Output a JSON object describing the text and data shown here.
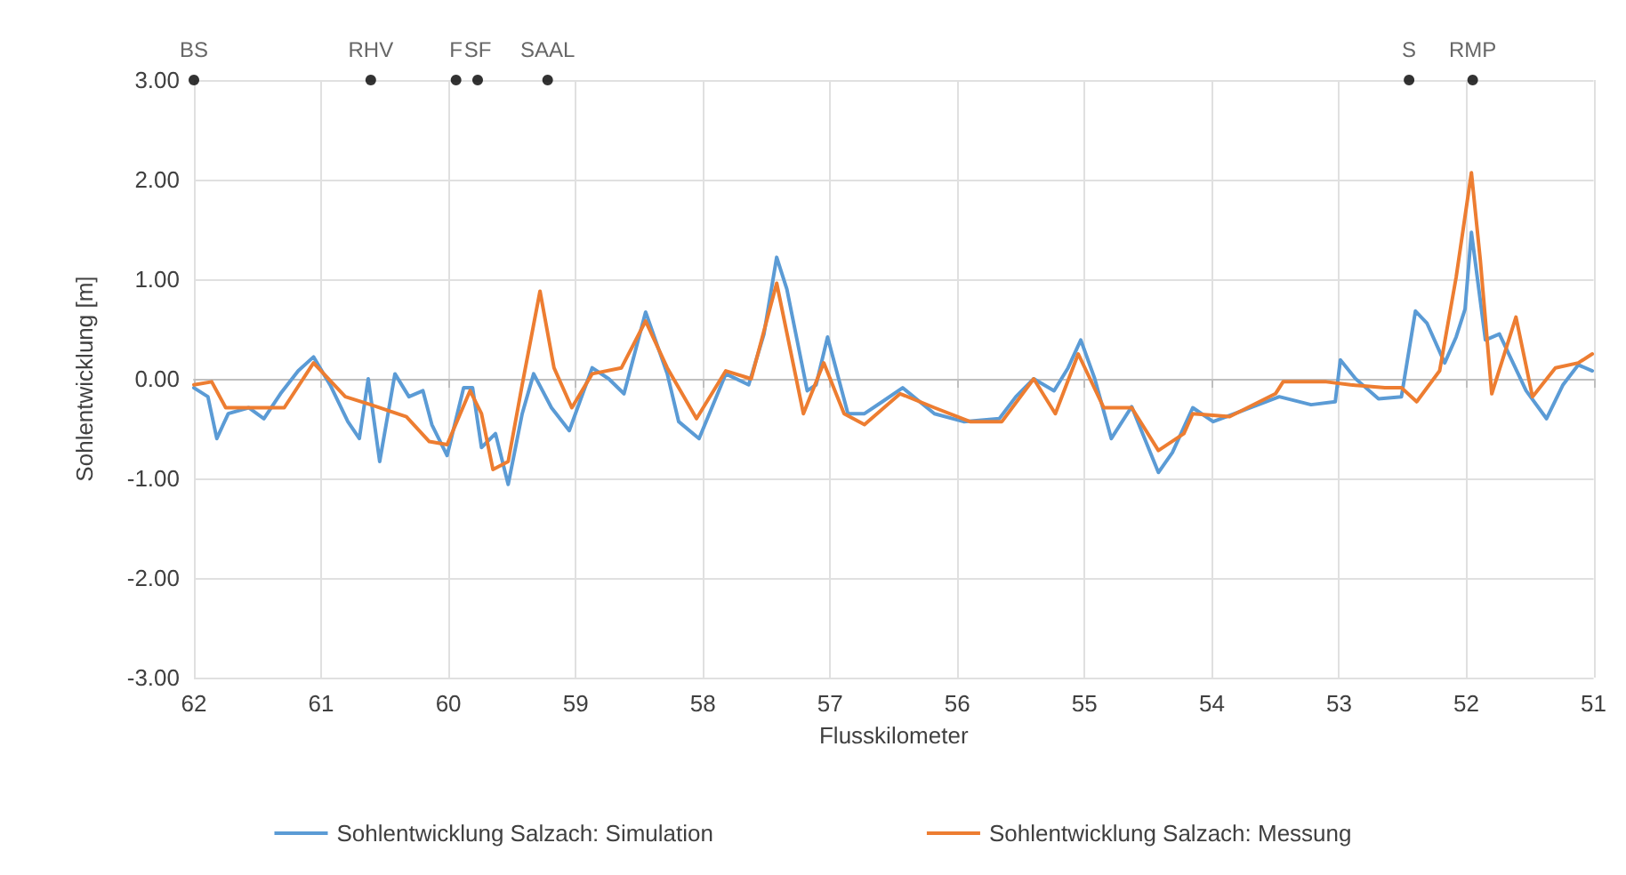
{
  "chart_data": {
    "type": "line",
    "xlabel": "Flusskilometer",
    "ylabel": "Sohlentwicklung [m]",
    "xlim": [
      62,
      51
    ],
    "xticks": [
      62,
      61,
      60,
      59,
      58,
      57,
      56,
      55,
      54,
      53,
      52,
      51
    ],
    "ylim": [
      -3,
      3
    ],
    "yticks": [
      {
        "value": -3,
        "label": "-3.00"
      },
      {
        "value": -2,
        "label": "-2.00"
      },
      {
        "value": -1,
        "label": "-1.00"
      },
      {
        "value": 0,
        "label": "0.00"
      },
      {
        "value": 1,
        "label": "1.00"
      },
      {
        "value": 2,
        "label": "2.00"
      },
      {
        "value": 3,
        "label": "3.00"
      }
    ],
    "grid": true,
    "legend": "bottom",
    "line_style": "solid",
    "marker": "none",
    "annotations": [
      {
        "text": "BS",
        "x": 62,
        "y": 3
      },
      {
        "text": "RHV",
        "x": 60.61,
        "y": 3
      },
      {
        "text": "F",
        "x": 59.94,
        "y": 3
      },
      {
        "text": "SF",
        "x": 59.77,
        "y": 3
      },
      {
        "text": "SAAL",
        "x": 59.22,
        "y": 3
      },
      {
        "text": "S",
        "x": 52.45,
        "y": 3
      },
      {
        "text": "RMP",
        "x": 51.95,
        "y": 3
      }
    ],
    "series": [
      {
        "name": "Sohlentwicklung Salzach: Simulation",
        "color": "#5b9bd5",
        "x": [
          62,
          61.89,
          61.82,
          61.73,
          61.57,
          61.45,
          61.32,
          61.18,
          61.06,
          60.93,
          60.79,
          60.7,
          60.63,
          60.54,
          60.42,
          60.31,
          60.2,
          60.13,
          60.01,
          59.88,
          59.81,
          59.74,
          59.63,
          59.53,
          59.42,
          59.33,
          59.19,
          59.05,
          58.87,
          58.74,
          58.62,
          58.45,
          58.28,
          58.19,
          58.03,
          57.82,
          57.64,
          57.52,
          57.42,
          57.34,
          57.18,
          57.11,
          57.02,
          56.86,
          56.73,
          56.59,
          56.43,
          56.18,
          55.95,
          55.67,
          55.54,
          55.4,
          55.24,
          55.13,
          55.03,
          54.92,
          54.79,
          54.63,
          54.42,
          54.31,
          54.15,
          53.99,
          53.76,
          53.47,
          53.22,
          53.03,
          52.99,
          52.87,
          52.69,
          52.51,
          52.4,
          52.31,
          52.17,
          52.08,
          52.01,
          51.96,
          51.85,
          51.74,
          51.53,
          51.37,
          51.24,
          51.12,
          51.01
        ],
        "values": [
          -0.09,
          -0.18,
          -0.6,
          -0.35,
          -0.29,
          -0.4,
          -0.15,
          0.08,
          0.22,
          -0.06,
          -0.43,
          -0.6,
          0,
          -0.83,
          0.05,
          -0.18,
          -0.12,
          -0.46,
          -0.77,
          -0.09,
          -0.09,
          -0.69,
          -0.55,
          -1.06,
          -0.35,
          0.05,
          -0.29,
          -0.52,
          0.11,
          0,
          -0.15,
          0.67,
          0.05,
          -0.43,
          -0.6,
          0.05,
          -0.06,
          0.45,
          1.22,
          0.9,
          -0.12,
          -0.06,
          0.42,
          -0.35,
          -0.35,
          -0.23,
          -0.09,
          -0.35,
          -0.43,
          -0.4,
          -0.18,
          0,
          -0.12,
          0.11,
          0.39,
          0,
          -0.6,
          -0.28,
          -0.94,
          -0.74,
          -0.29,
          -0.43,
          -0.32,
          -0.18,
          -0.26,
          -0.23,
          0.19,
          0,
          -0.2,
          -0.18,
          0.68,
          0.56,
          0.16,
          0.42,
          0.7,
          1.47,
          0.39,
          0.45,
          -0.12,
          -0.4,
          -0.06,
          0.14,
          0.08
        ]
      },
      {
        "name": "Sohlentwicklung Salzach: Messung",
        "color": "#ed7d31",
        "x": [
          62,
          61.86,
          61.75,
          61.57,
          61.29,
          61.06,
          60.81,
          60.61,
          60.33,
          60.15,
          60.01,
          59.83,
          59.74,
          59.65,
          59.53,
          59.42,
          59.28,
          59.17,
          59.03,
          58.87,
          58.64,
          58.45,
          58.28,
          58.05,
          57.82,
          57.62,
          57.42,
          57.21,
          57.05,
          56.89,
          56.73,
          56.45,
          56.18,
          55.9,
          55.65,
          55.4,
          55.23,
          55.05,
          54.85,
          54.63,
          54.42,
          54.22,
          54.15,
          53.86,
          53.5,
          53.44,
          53.1,
          52.91,
          52.64,
          52.51,
          52.39,
          52.21,
          52.08,
          51.96,
          51.89,
          51.8,
          51.61,
          51.48,
          51.3,
          51.12,
          51.01
        ],
        "values": [
          -0.06,
          -0.03,
          -0.29,
          -0.29,
          -0.29,
          0.16,
          -0.18,
          -0.26,
          -0.38,
          -0.63,
          -0.66,
          -0.12,
          -0.35,
          -0.91,
          -0.83,
          -0.06,
          0.88,
          0.11,
          -0.29,
          0.05,
          0.11,
          0.58,
          0.11,
          -0.4,
          0.08,
          0,
          0.96,
          -0.35,
          0.16,
          -0.35,
          -0.46,
          -0.15,
          -0.29,
          -0.43,
          -0.43,
          0,
          -0.35,
          0.25,
          -0.29,
          -0.29,
          -0.72,
          -0.55,
          -0.35,
          -0.38,
          -0.15,
          -0.03,
          -0.03,
          -0.06,
          -0.09,
          -0.09,
          -0.23,
          0.08,
          1.02,
          2.07,
          1.19,
          -0.15,
          0.62,
          -0.18,
          0.11,
          0.16,
          0.25
        ]
      }
    ]
  }
}
